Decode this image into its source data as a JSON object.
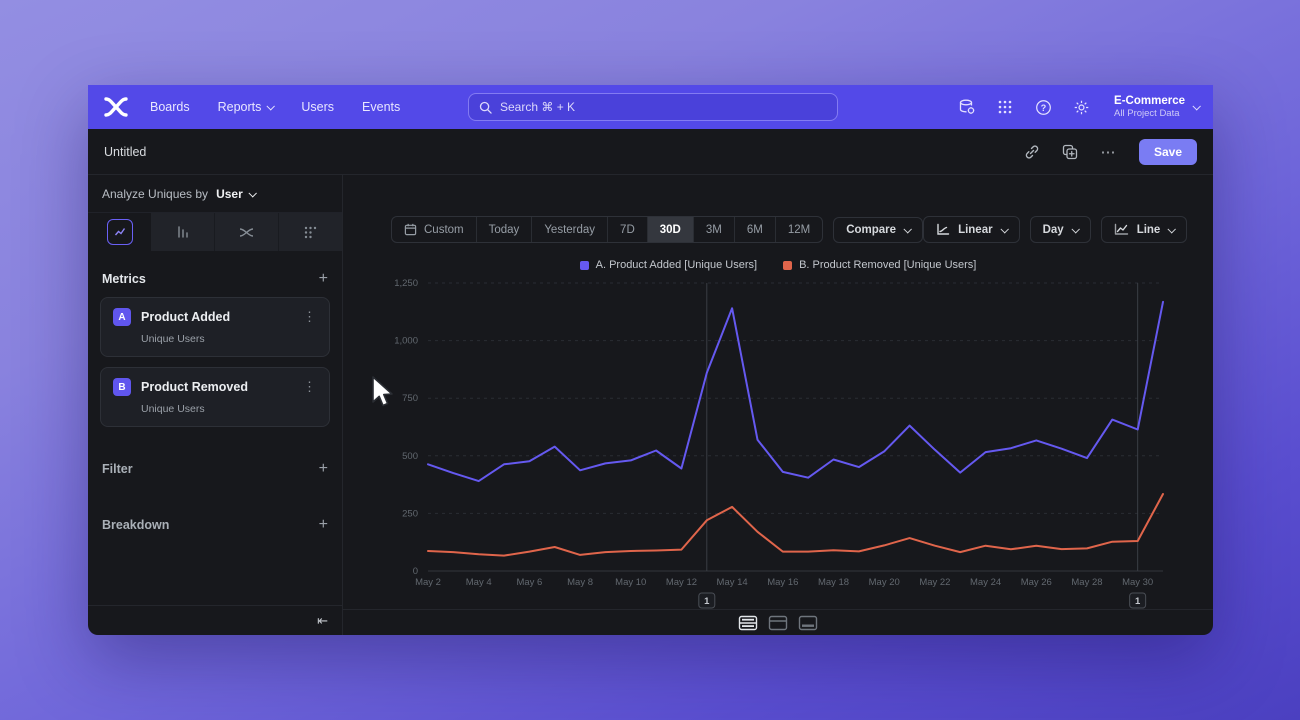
{
  "nav": {
    "items": [
      {
        "label": "Boards",
        "has_chevron": false
      },
      {
        "label": "Reports",
        "has_chevron": true
      },
      {
        "label": "Users",
        "has_chevron": false
      },
      {
        "label": "Events",
        "has_chevron": false
      }
    ],
    "search_placeholder": "Search  ⌘ + K",
    "org": {
      "name": "E-Commerce",
      "subtitle": "All Project Data"
    }
  },
  "titlebar": {
    "title": "Untitled",
    "save_label": "Save"
  },
  "sidebar": {
    "analyze_prefix": "Analyze Uniques by",
    "analyze_value": "User",
    "metrics_header": "Metrics",
    "metrics": [
      {
        "badge": "A",
        "name": "Product Added",
        "subtitle": "Unique Users"
      },
      {
        "badge": "B",
        "name": "Product Removed",
        "subtitle": "Unique Users"
      }
    ],
    "filter_header": "Filter",
    "breakdown_header": "Breakdown"
  },
  "toolbar": {
    "ranges": [
      {
        "label": "Custom",
        "icon": "calendar"
      },
      {
        "label": "Today"
      },
      {
        "label": "Yesterday"
      },
      {
        "label": "7D"
      },
      {
        "label": "30D",
        "selected": true
      },
      {
        "label": "3M"
      },
      {
        "label": "6M"
      },
      {
        "label": "12M"
      }
    ],
    "compare_label": "Compare",
    "scale_label": "Linear",
    "interval_label": "Day",
    "chart_type_label": "Line"
  },
  "icons": {
    "plus": "+",
    "kebab": "⋮",
    "ellipsis": "⋯",
    "collapse": "⇤"
  },
  "colors": {
    "nav_bg": "#5349e8",
    "accent": "#6a60f5",
    "save_button": "#7a7cf3",
    "series_a": "#6559f0",
    "series_b": "#e0654b"
  },
  "chart_data": {
    "type": "line",
    "title": "",
    "x": [
      "May 2",
      "May 3",
      "May 4",
      "May 5",
      "May 6",
      "May 7",
      "May 8",
      "May 9",
      "May 10",
      "May 11",
      "May 12",
      "May 13",
      "May 14",
      "May 15",
      "May 16",
      "May 17",
      "May 18",
      "May 19",
      "May 20",
      "May 21",
      "May 22",
      "May 23",
      "May 24",
      "May 25",
      "May 26",
      "May 27",
      "May 28",
      "May 29",
      "May 30",
      "May 31"
    ],
    "x_tick_every": 2,
    "series": [
      {
        "name": "A. Product Added [Unique Users]",
        "color": "#6559f0",
        "values": [
          463,
          425,
          390,
          463,
          476,
          540,
          437,
          467,
          480,
          523,
          445,
          860,
          1140,
          570,
          430,
          405,
          484,
          451,
          519,
          631,
          526,
          427,
          516,
          533,
          567,
          531,
          490,
          657,
          614,
          1168
        ]
      },
      {
        "name": "B. Product Removed [Unique Users]",
        "color": "#e0654b",
        "values": [
          87,
          82,
          73,
          67,
          84,
          104,
          70,
          82,
          87,
          89,
          93,
          220,
          278,
          170,
          84,
          84,
          90,
          85,
          111,
          143,
          110,
          82,
          110,
          94,
          110,
          95,
          98,
          127,
          130,
          334
        ]
      }
    ],
    "ylim": [
      0,
      1250
    ],
    "yticks": [
      0,
      250,
      500,
      750,
      1000,
      1250
    ],
    "ytick_labels": [
      "0",
      "250",
      "500",
      "750",
      "1,000",
      "1,250"
    ],
    "annotations": [
      {
        "x": "May 13",
        "label": "1"
      },
      {
        "x": "May 30",
        "label": "1"
      }
    ],
    "grid": "horizontal-dashed",
    "legend_position": "top-center"
  }
}
